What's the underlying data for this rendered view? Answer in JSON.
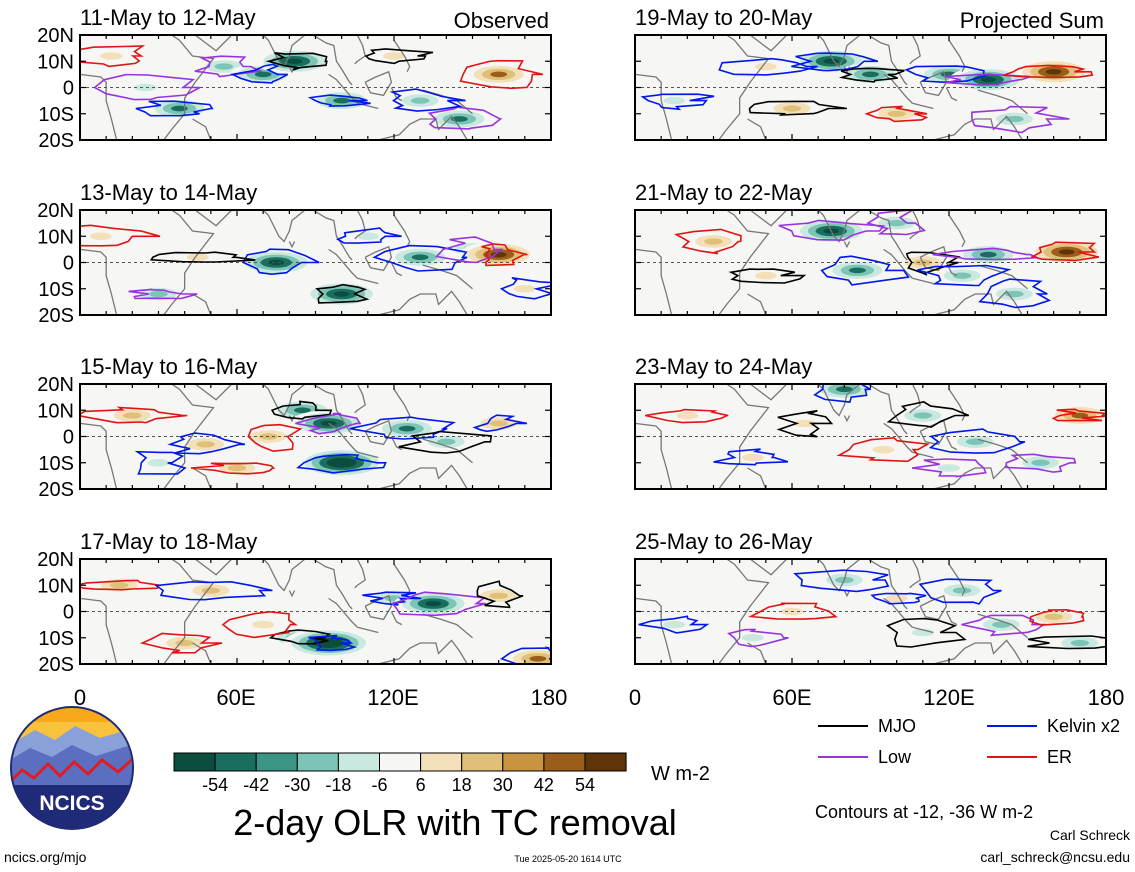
{
  "chart_data": {
    "type": "heatmap",
    "title": "2-day OLR with TC removal",
    "variable": "OLR anomaly",
    "units": "W m-2",
    "x_axis": {
      "ticks": [
        "0",
        "60E",
        "120E",
        "180"
      ],
      "range": [
        0,
        180
      ]
    },
    "y_axis": {
      "ticks": [
        "20N",
        "10N",
        "0",
        "10S",
        "20S"
      ],
      "range": [
        -20,
        20
      ]
    },
    "colorbar": {
      "labels": [
        "-54",
        "-42",
        "-30",
        "-18",
        "-6",
        "6",
        "18",
        "30",
        "42",
        "54"
      ],
      "colors": [
        "#0b4d3f",
        "#1a6e5e",
        "#3a9584",
        "#7cc4b5",
        "#c8e8e0",
        "#f6f6f4",
        "#f3e0b8",
        "#e0c078",
        "#c99440",
        "#9a5e1a",
        "#5e3408"
      ]
    },
    "contour_note": "Contours at -12, -36 W m-2",
    "legend": [
      {
        "label": "MJO",
        "color": "#000000"
      },
      {
        "label": "Kelvin x2",
        "color": "#0018e8"
      },
      {
        "label": "Low",
        "color": "#9933dd"
      },
      {
        "label": "ER",
        "color": "#e01414"
      }
    ],
    "column_tags": [
      "Observed",
      "Projected Sum"
    ],
    "panels": [
      {
        "title": "11-May to 12-May",
        "tag": "Observed",
        "blobs": [
          [
            12,
            12,
            1
          ],
          [
            55,
            8,
            -2
          ],
          [
            70,
            5,
            -3
          ],
          [
            82,
            10,
            -4
          ],
          [
            100,
            -5,
            -3
          ],
          [
            145,
            -12,
            -3
          ],
          [
            160,
            5,
            3
          ],
          [
            120,
            12,
            1
          ],
          [
            38,
            -8,
            -3
          ],
          [
            25,
            0,
            -1
          ],
          [
            130,
            -5,
            -2
          ]
        ]
      },
      {
        "title": "13-May to 14-May",
        "tag": "",
        "blobs": [
          [
            8,
            10,
            1
          ],
          [
            30,
            -12,
            -2
          ],
          [
            75,
            0,
            -4
          ],
          [
            100,
            -12,
            -4
          ],
          [
            130,
            2,
            -3
          ],
          [
            150,
            5,
            -2
          ],
          [
            160,
            3,
            4
          ],
          [
            45,
            2,
            1
          ],
          [
            110,
            10,
            -1
          ],
          [
            170,
            -10,
            1
          ]
        ]
      },
      {
        "title": "15-May to 16-May",
        "tag": "",
        "blobs": [
          [
            20,
            8,
            2
          ],
          [
            48,
            -3,
            2
          ],
          [
            72,
            0,
            2
          ],
          [
            85,
            10,
            -3
          ],
          [
            100,
            -10,
            -5
          ],
          [
            95,
            5,
            -4
          ],
          [
            125,
            3,
            -3
          ],
          [
            140,
            -2,
            -2
          ],
          [
            60,
            -12,
            2
          ],
          [
            160,
            5,
            2
          ],
          [
            30,
            -10,
            -1
          ]
        ]
      },
      {
        "title": "17-May to 18-May",
        "tag": "",
        "blobs": [
          [
            15,
            10,
            2
          ],
          [
            50,
            8,
            2
          ],
          [
            40,
            -12,
            2
          ],
          [
            85,
            -10,
            -3
          ],
          [
            120,
            5,
            -2
          ],
          [
            135,
            3,
            -4
          ],
          [
            95,
            -12,
            -5
          ],
          [
            160,
            6,
            2
          ],
          [
            70,
            -5,
            1
          ],
          [
            175,
            -18,
            3
          ]
        ]
      },
      {
        "title": "19-May to 20-May",
        "tag": "Projected Sum",
        "blobs": [
          [
            15,
            -5,
            -1
          ],
          [
            50,
            8,
            1
          ],
          [
            75,
            10,
            -4
          ],
          [
            90,
            5,
            -3
          ],
          [
            120,
            5,
            -3
          ],
          [
            135,
            3,
            -4
          ],
          [
            160,
            6,
            4
          ],
          [
            60,
            -8,
            2
          ],
          [
            100,
            -10,
            2
          ],
          [
            145,
            -12,
            -2
          ]
        ]
      },
      {
        "title": "21-May to 22-May",
        "tag": "",
        "blobs": [
          [
            30,
            8,
            2
          ],
          [
            75,
            12,
            -4
          ],
          [
            85,
            -3,
            -3
          ],
          [
            110,
            0,
            2
          ],
          [
            125,
            -5,
            -2
          ],
          [
            135,
            3,
            -3
          ],
          [
            165,
            4,
            4
          ],
          [
            50,
            -5,
            1
          ],
          [
            145,
            -12,
            -2
          ],
          [
            100,
            15,
            -2
          ]
        ]
      },
      {
        "title": "23-May to 24-May",
        "tag": "",
        "blobs": [
          [
            20,
            8,
            1
          ],
          [
            45,
            -8,
            1
          ],
          [
            80,
            18,
            -3
          ],
          [
            110,
            8,
            -2
          ],
          [
            130,
            -2,
            -2
          ],
          [
            155,
            -10,
            -2
          ],
          [
            170,
            8,
            3
          ],
          [
            65,
            5,
            1
          ],
          [
            95,
            -5,
            1
          ],
          [
            120,
            -12,
            -1
          ]
        ]
      },
      {
        "title": "25-May to 26-May",
        "tag": "",
        "blobs": [
          [
            15,
            -5,
            -1
          ],
          [
            45,
            -10,
            -1
          ],
          [
            80,
            12,
            -2
          ],
          [
            110,
            -8,
            -1
          ],
          [
            125,
            8,
            -2
          ],
          [
            140,
            -5,
            -2
          ],
          [
            160,
            -2,
            2
          ],
          [
            170,
            -12,
            -2
          ],
          [
            60,
            0,
            1
          ],
          [
            100,
            5,
            1
          ]
        ]
      }
    ]
  },
  "logo_text": "NCICS",
  "footer": {
    "url": "ncics.org/mjo",
    "timestamp": "Tue 2025-05-20 1614 UTC",
    "author": "Carl Schreck",
    "email": "carl_schreck@ncsu.edu"
  }
}
